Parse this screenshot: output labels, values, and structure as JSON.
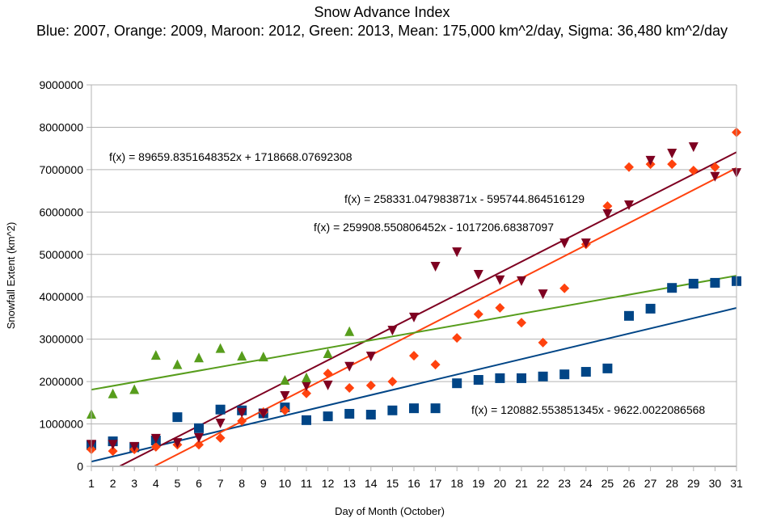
{
  "chart_data": {
    "type": "scatter",
    "title": "Snow Advance Index",
    "subtitle": "Blue: 2007, Orange: 2009, Maroon: 2012, Green: 2013, Mean: 175,000 km^2/day, Sigma: 36,480 km^2/day",
    "xlabel": "Day of Month (October)",
    "ylabel": "Snowfall Extent (km^2)",
    "xlim": [
      1,
      31
    ],
    "ylim": [
      0,
      9000000
    ],
    "x_ticks": [
      "1",
      "2",
      "3",
      "4",
      "5",
      "6",
      "7",
      "8",
      "9",
      "10",
      "11",
      "12",
      "13",
      "14",
      "15",
      "16",
      "17",
      "18",
      "19",
      "20",
      "21",
      "22",
      "23",
      "24",
      "25",
      "26",
      "27",
      "28",
      "29",
      "30",
      "31"
    ],
    "y_ticks": [
      "0",
      "1000000",
      "2000000",
      "3000000",
      "4000000",
      "5000000",
      "6000000",
      "7000000",
      "8000000",
      "9000000"
    ],
    "grid": "horizontal",
    "legend": "none",
    "series": [
      {
        "name": "2007",
        "color": "#004586",
        "marker": "square",
        "x": [
          1,
          2,
          3,
          4,
          5,
          6,
          7,
          8,
          9,
          10,
          11,
          12,
          13,
          14,
          15,
          16,
          17,
          18,
          19,
          20,
          21,
          22,
          23,
          24,
          25,
          26,
          27,
          28,
          29,
          30,
          31
        ],
        "values": [
          500000,
          590000,
          450000,
          610000,
          1160000,
          900000,
          1340000,
          1320000,
          1250000,
          1390000,
          1090000,
          1180000,
          1240000,
          1220000,
          1320000,
          1370000,
          1370000,
          1960000,
          2040000,
          2080000,
          2080000,
          2120000,
          2170000,
          2230000,
          2310000,
          3550000,
          3720000,
          4210000,
          4310000,
          4330000,
          4370000
        ],
        "trendline": {
          "slope": 120882.553851345,
          "intercept": -9622.0022086568,
          "label": "f(x) = 120882.553851345x - 9622.0022086568"
        }
      },
      {
        "name": "2009",
        "color": "#ff420e",
        "marker": "diamond",
        "x": [
          1,
          2,
          3,
          4,
          5,
          6,
          7,
          8,
          9,
          10,
          11,
          12,
          13,
          14,
          15,
          16,
          17,
          18,
          19,
          20,
          21,
          22,
          23,
          24,
          25,
          26,
          27,
          28,
          29,
          30,
          31
        ],
        "values": [
          400000,
          360000,
          400000,
          460000,
          510000,
          510000,
          670000,
          1070000,
          1280000,
          1320000,
          1720000,
          2190000,
          1850000,
          1910000,
          2000000,
          2610000,
          2400000,
          3030000,
          3590000,
          3740000,
          3390000,
          2920000,
          4200000,
          5240000,
          6140000,
          7060000,
          7130000,
          7130000,
          6980000,
          7060000,
          7880000
        ],
        "trendline": {
          "slope": 259908.550806452,
          "intercept": -1017206.68387097,
          "label": "f(x) = 259908.550806452x - 1017206.68387097"
        }
      },
      {
        "name": "2012",
        "color": "#7e0021",
        "marker": "triangle-down",
        "x": [
          1,
          2,
          3,
          4,
          5,
          6,
          7,
          8,
          9,
          10,
          11,
          12,
          13,
          14,
          15,
          16,
          17,
          18,
          19,
          20,
          21,
          22,
          23,
          24,
          25,
          26,
          27,
          28,
          29,
          30,
          31
        ],
        "values": [
          510000,
          510000,
          460000,
          650000,
          550000,
          670000,
          1010000,
          1260000,
          1240000,
          1660000,
          1890000,
          1910000,
          2350000,
          2590000,
          3200000,
          3510000,
          4710000,
          5050000,
          4520000,
          4390000,
          4370000,
          4060000,
          5260000,
          5260000,
          5950000,
          6160000,
          7210000,
          7380000,
          7530000,
          6830000,
          6920000
        ],
        "trendline": {
          "slope": 258331.047983871,
          "intercept": -595744.864516129,
          "label": "f(x) = 258331.047983871x - 595744.864516129"
        }
      },
      {
        "name": "2013",
        "color": "#579d1c",
        "marker": "triangle-up",
        "x": [
          1,
          2,
          3,
          4,
          5,
          6,
          7,
          8,
          9,
          10,
          11,
          12,
          13
        ],
        "values": [
          1240000,
          1720000,
          1820000,
          2630000,
          2410000,
          2570000,
          2790000,
          2610000,
          2590000,
          2040000,
          2100000,
          2670000,
          3190000
        ],
        "trendline": {
          "slope": 89659.8351648352,
          "intercept": 1718668.07692308,
          "label": "f(x) = 89659.8351648352x + 1718668.07692308"
        }
      }
    ]
  }
}
